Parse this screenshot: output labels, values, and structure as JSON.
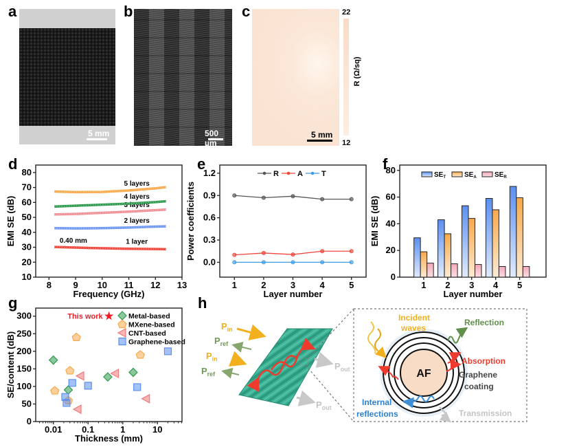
{
  "panel_letters": {
    "a": "a",
    "b": "b",
    "c": "c",
    "d": "d",
    "e": "e",
    "f": "f",
    "g": "g",
    "h": "h"
  },
  "images": {
    "a_scale": "5 mm",
    "b_scale": "500 µm",
    "c_scale": "5 mm",
    "c_colorbar": {
      "max": "22",
      "min": "12",
      "label": "R (Ω/sq)"
    }
  },
  "colors": {
    "red": "#f0463a",
    "blue": "#5b8ff0",
    "green": "#2e9a4e",
    "orange": "#f7a94b",
    "pink": "#f4b4c2",
    "gray": "#555555"
  },
  "chart_data": [
    {
      "panel": "d",
      "type": "line",
      "xlabel": "Frequency (GHz)",
      "ylabel": "EMI SE (dB)",
      "xlim": [
        7.5,
        13
      ],
      "ylim": [
        10,
        85
      ],
      "xticks": [
        8,
        9,
        10,
        11,
        12,
        13
      ],
      "yticks": [
        10,
        20,
        30,
        40,
        50,
        60,
        70,
        80
      ],
      "annotation": "0.40 mm",
      "series": [
        {
          "name": "1 layer",
          "color": "#f0463a",
          "x": [
            8.2,
            9,
            10,
            11,
            12,
            12.4
          ],
          "y": [
            30.2,
            29.8,
            29.3,
            29.0,
            28.8,
            28.7
          ]
        },
        {
          "name": "2 layers",
          "color": "#6d98f0",
          "x": [
            8.2,
            9,
            10,
            11,
            12,
            12.4
          ],
          "y": [
            42.8,
            42.6,
            42.8,
            43.2,
            43.8,
            44.0
          ]
        },
        {
          "name": "3 layers",
          "color": "#ee8f95",
          "x": [
            8.2,
            9,
            10,
            11,
            12,
            12.4
          ],
          "y": [
            52.0,
            52.3,
            53.0,
            53.8,
            54.8,
            55.2
          ]
        },
        {
          "name": "4 layers",
          "color": "#2e9a4e",
          "x": [
            8.2,
            9,
            10,
            11,
            12,
            12.4
          ],
          "y": [
            57.2,
            57.8,
            58.5,
            59.2,
            60.2,
            60.8
          ]
        },
        {
          "name": "5 layers",
          "color": "#f7a94b",
          "x": [
            8.2,
            9,
            10,
            11,
            12,
            12.4
          ],
          "y": [
            67.3,
            66.9,
            67.0,
            68.0,
            69.4,
            70.2
          ]
        }
      ]
    },
    {
      "panel": "e",
      "type": "line",
      "xlabel": "Layer number",
      "ylabel": "Power coefficients",
      "xlim": [
        0.5,
        5.5
      ],
      "ylim": [
        -0.2,
        1.31
      ],
      "xticks": [
        1,
        2,
        3,
        4,
        5
      ],
      "yticks": [
        "0.0",
        "0.3",
        "0.6",
        "0.9",
        "1.2"
      ],
      "legend": "top",
      "series": [
        {
          "name": "R",
          "color": "#555555",
          "x": [
            1,
            2,
            3,
            4,
            5
          ],
          "y": [
            0.9,
            0.87,
            0.89,
            0.85,
            0.85
          ]
        },
        {
          "name": "A",
          "color": "#f0463a",
          "x": [
            1,
            2,
            3,
            4,
            5
          ],
          "y": [
            0.1,
            0.125,
            0.105,
            0.15,
            0.15
          ]
        },
        {
          "name": "T",
          "color": "#3d9be9",
          "x": [
            1,
            2,
            3,
            4,
            5
          ],
          "y": [
            0.0,
            0.0,
            0.0,
            0.0,
            0.0
          ]
        }
      ]
    },
    {
      "panel": "f",
      "type": "bar",
      "xlabel": "Layer number",
      "ylabel": "EMI SE (dB)",
      "xlim": [
        0,
        6.1
      ],
      "ylim": [
        0,
        84
      ],
      "categories": [
        1,
        2,
        3,
        4,
        5
      ],
      "yticks": [
        0,
        20,
        40,
        60,
        80
      ],
      "legend": "top",
      "series": [
        {
          "name": "SE",
          "sub": "T",
          "color": "#5b8ff0",
          "values": [
            29.5,
            43,
            53.5,
            59,
            68
          ]
        },
        {
          "name": "SE",
          "sub": "A",
          "color": "#f7a94b",
          "values": [
            19,
            32.5,
            44,
            50.5,
            59.5
          ]
        },
        {
          "name": "SE",
          "sub": "R",
          "color": "#f4b4c2",
          "values": [
            10.5,
            10,
            9.5,
            8,
            8
          ]
        }
      ]
    },
    {
      "panel": "g",
      "type": "scatter",
      "xlabel": "Thickness (mm)",
      "ylabel": "SE/content (dB)",
      "xscale": "log",
      "xlim": [
        0.0031,
        51
      ],
      "ylim": [
        0,
        323
      ],
      "xticks": [
        "0.01",
        "0.1",
        "1",
        "10"
      ],
      "yticks": [
        0,
        50,
        100,
        150,
        200,
        250,
        300
      ],
      "legend": "top-right",
      "highlight": {
        "label": "This work",
        "color": "#ee1c25",
        "x": 0.4,
        "y": 300
      },
      "series": [
        {
          "name": "Metal-based",
          "marker": "diamond",
          "color": "#2e9a4e",
          "x": [
            0.01,
            0.027,
            0.37,
            2.0
          ],
          "y": [
            175,
            90,
            127,
            140
          ]
        },
        {
          "name": "MXene-based",
          "marker": "pentagon",
          "color": "#f7a94b",
          "x": [
            0.011,
            0.046,
            0.03,
            0.027,
            3.2
          ],
          "y": [
            88,
            240,
            145,
            60,
            190
          ]
        },
        {
          "name": "CNT-based",
          "marker": "triangle-left",
          "color": "#f07878",
          "x": [
            0.06,
            0.05,
            0.6,
            4.7
          ],
          "y": [
            130,
            35,
            137,
            65
          ]
        },
        {
          "name": "Graphene-based",
          "marker": "square",
          "color": "#5b8ff0",
          "x": [
            0.022,
            0.024,
            0.035,
            0.1,
            2.6,
            20
          ],
          "y": [
            70,
            53,
            110,
            102,
            98,
            200
          ]
        }
      ]
    }
  ],
  "diagram": {
    "p_in": {
      "main": "P",
      "sub": "in"
    },
    "p_ref": {
      "main": "P",
      "sub": "ref"
    },
    "p_out": {
      "main": "P",
      "sub": "out"
    },
    "incident_1": "Incident",
    "incident_2": "waves",
    "reflection": "Reflection",
    "absorption": "Absorption",
    "graphene_1": "Graphene",
    "graphene_2": "coating",
    "core": "AF",
    "internal_1": "Internal",
    "internal_2": "reflections",
    "transmission": "Transmission"
  }
}
